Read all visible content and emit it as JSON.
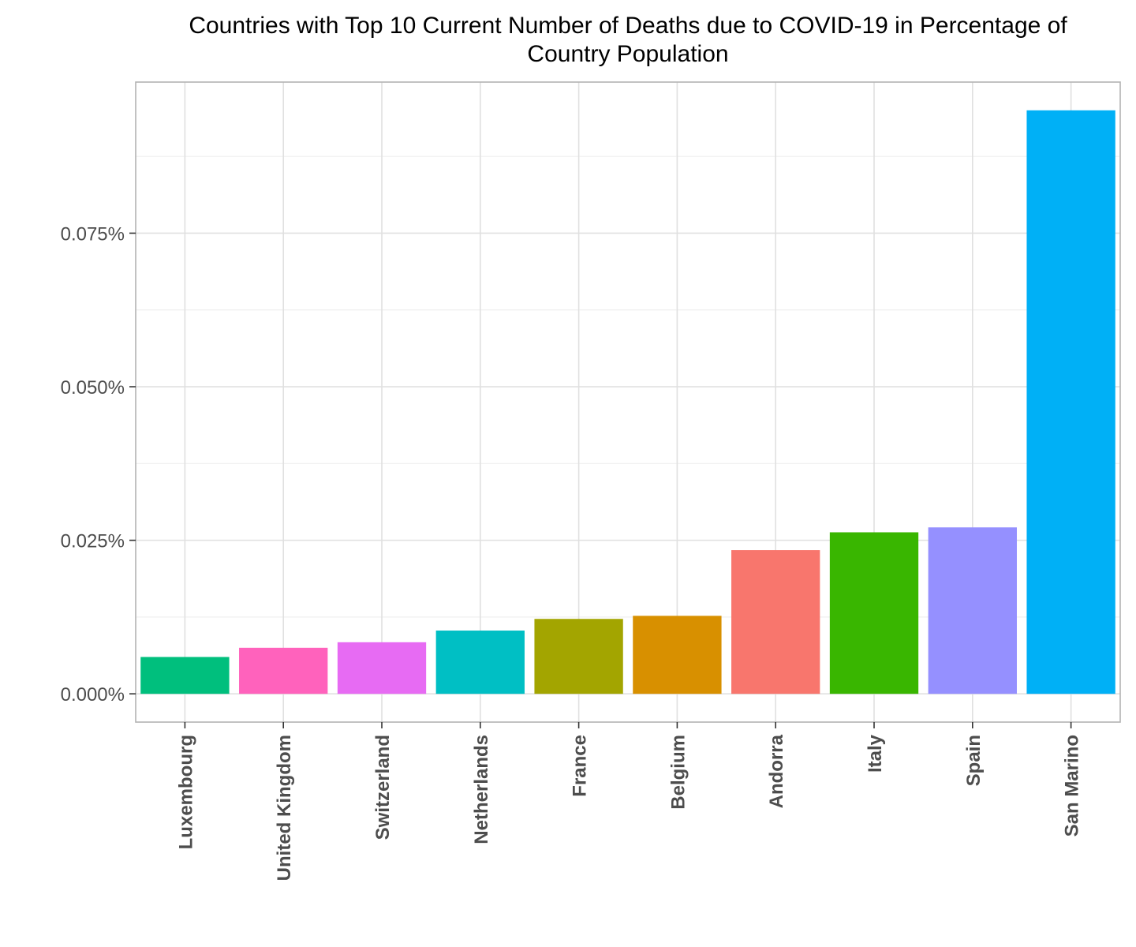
{
  "chart_data": {
    "type": "bar",
    "title": "Countries with Top 10 Current Number of Deaths due to COVID-19 in Percentage of Country Population",
    "title_lines": [
      "Countries with Top 10 Current Number of Deaths due to COVID-19 in Percentage of",
      "Country Population"
    ],
    "xlabel": "",
    "ylabel": "",
    "categories": [
      "Luxembourg",
      "United Kingdom",
      "Switzerland",
      "Netherlands",
      "France",
      "Belgium",
      "Andorra",
      "Italy",
      "Spain",
      "San Marino"
    ],
    "values": [
      0.006,
      0.0075,
      0.0084,
      0.0103,
      0.0122,
      0.0127,
      0.0234,
      0.0263,
      0.0271,
      0.095
    ],
    "colors": [
      "#00BF7D",
      "#FF62BC",
      "#E76BF3",
      "#00BFC4",
      "#A3A500",
      "#D89000",
      "#F8766D",
      "#39B600",
      "#9590FF",
      "#00B0F6"
    ],
    "ylim": [
      -0.0046,
      0.0996
    ],
    "yticks": [
      0,
      0.025,
      0.05,
      0.075
    ],
    "ytick_labels": [
      "0.000%",
      "0.025%",
      "0.050%",
      "0.075%"
    ],
    "grid": true,
    "legend": "none",
    "background": "#ffffff",
    "panel_border_color": "#b3b3b3",
    "grid_color": "#e0e0e0"
  }
}
